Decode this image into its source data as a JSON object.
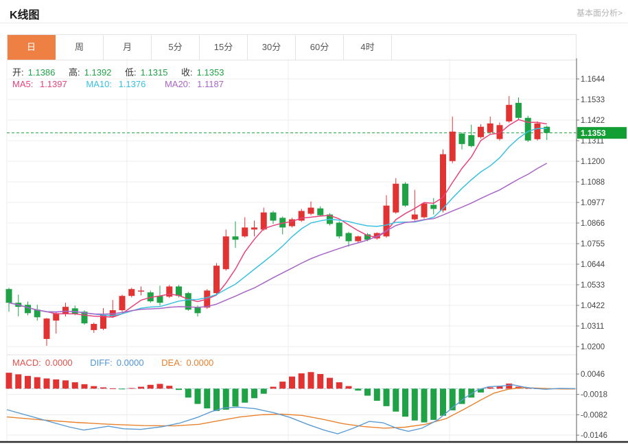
{
  "header": {
    "title": "K线图",
    "link": "基本面分析>"
  },
  "tabs": {
    "items": [
      "日",
      "周",
      "月",
      "5分",
      "15分",
      "30分",
      "60分",
      "4时"
    ],
    "active_index": 0
  },
  "indicators": {
    "open_label": "开:",
    "open": "1.1386",
    "high_label": "高:",
    "high": "1.1392",
    "low_label": "低:",
    "low": "1.1315",
    "close_label": "收:",
    "close": "1.1353",
    "ma5_label": "MA5:",
    "ma5": "1.1397",
    "ma10_label": "MA10:",
    "ma10": "1.1376",
    "ma20_label": "MA20:",
    "ma20": "1.1187"
  },
  "macd_header": {
    "macd_label": "MACD:",
    "macd": "0.0000",
    "diff_label": "DIFF:",
    "diff": "0.0000",
    "dea_label": "DEA:",
    "dea": "0.0000"
  },
  "colors": {
    "up": "#e23333",
    "down": "#1fa146",
    "ma5": "#e8427c",
    "ma10": "#38c0e0",
    "ma20": "#a964c7",
    "diff": "#5b9bd5",
    "dea": "#e8822e",
    "price_line": "#1aa337",
    "badge_bg": "#149f35",
    "badge_text": "#ffffff",
    "grid": "#ececec",
    "axis": "#777777",
    "tick_text": "#444444",
    "tab_accent": "#ee8044",
    "bottom_bar": "#2b2b2b",
    "macd_zero": "#9fc3e8"
  },
  "chart_data": {
    "type": "candlestick+macd",
    "title": "K线图 (daily candles with MA5/MA10/MA20 and MACD)",
    "legend_position": "top-left",
    "grid": true,
    "price_axis_ticks": [
      "1.1644",
      "1.1533",
      "1.1422",
      "1.1311",
      "1.1200",
      "1.1088",
      "1.0977",
      "1.0866",
      "1.0755",
      "1.0644",
      "1.0533",
      "1.0422",
      "1.0311",
      "1.0200"
    ],
    "price_axis_range": [
      1.02,
      1.1644
    ],
    "current_price": "1.1353",
    "ma_periods": [
      5,
      10,
      20
    ],
    "candles_ohlc": [
      [
        1.0511,
        1.0518,
        1.0389,
        1.0437
      ],
      [
        1.0437,
        1.0481,
        1.0364,
        1.0415
      ],
      [
        1.0426,
        1.0444,
        1.037,
        1.0381
      ],
      [
        1.04,
        1.0426,
        1.0341,
        1.0359
      ],
      [
        1.0242,
        1.0355,
        1.0205,
        1.0352
      ],
      [
        1.0341,
        1.0389,
        1.0271,
        1.0381
      ],
      [
        1.0378,
        1.0437,
        1.0363,
        1.0415
      ],
      [
        1.0407,
        1.0422,
        1.037,
        1.0378
      ],
      [
        1.0389,
        1.0396,
        1.0319,
        1.0326
      ],
      [
        1.029,
        1.033,
        1.0275,
        1.0323
      ],
      [
        1.0297,
        1.0408,
        1.029,
        1.0371
      ],
      [
        1.0363,
        1.0452,
        1.0356,
        1.0397
      ],
      [
        1.0397,
        1.0481,
        1.0389,
        1.0474
      ],
      [
        1.0474,
        1.0518,
        1.0466,
        1.0511
      ],
      [
        1.05,
        1.0525,
        1.0477,
        1.0503
      ],
      [
        1.0493,
        1.0503,
        1.0437,
        1.0445
      ],
      [
        1.0474,
        1.0529,
        1.0422,
        1.0437
      ],
      [
        1.047,
        1.0533,
        1.0463,
        1.0525
      ],
      [
        1.0525,
        1.0533,
        1.0466,
        1.0474
      ],
      [
        1.0489,
        1.0496,
        1.0393,
        1.04
      ],
      [
        1.0415,
        1.0422,
        1.0363,
        1.0381
      ],
      [
        1.0411,
        1.0511,
        1.0404,
        1.0503
      ],
      [
        1.0489,
        1.0651,
        1.048,
        1.0637
      ],
      [
        1.0618,
        1.0832,
        1.061,
        1.0795
      ],
      [
        1.0795,
        1.0876,
        1.0733,
        1.0777
      ],
      [
        1.0795,
        1.0898,
        1.0788,
        1.0843
      ],
      [
        1.0832,
        1.088,
        1.0795,
        1.0843
      ],
      [
        1.0832,
        1.095,
        1.0825,
        1.0924
      ],
      [
        1.0924,
        1.0932,
        1.0862,
        1.088
      ],
      [
        1.0895,
        1.0902,
        1.0806,
        1.0843
      ],
      [
        1.085,
        1.0895,
        1.0843,
        1.0887
      ],
      [
        1.088,
        1.0943,
        1.0873,
        1.0932
      ],
      [
        1.0917,
        1.0983,
        1.0909,
        1.095
      ],
      [
        1.0946,
        1.0957,
        1.0902,
        1.0909
      ],
      [
        1.0913,
        1.092,
        1.0854,
        1.0862
      ],
      [
        1.0869,
        1.0876,
        1.0784,
        1.0795
      ],
      [
        1.0813,
        1.082,
        1.074,
        1.0769
      ],
      [
        1.0769,
        1.0799,
        1.0762,
        1.0795
      ],
      [
        1.0806,
        1.0813,
        1.0769,
        1.0777
      ],
      [
        1.0784,
        1.0817,
        1.0777,
        1.0813
      ],
      [
        1.0795,
        1.1017,
        1.0788,
        1.0961
      ],
      [
        1.0924,
        1.1109,
        1.0917,
        1.1079
      ],
      [
        1.1079,
        1.1087,
        1.0954,
        1.0961
      ],
      [
        1.0887,
        1.1046,
        1.088,
        1.0913
      ],
      [
        1.0898,
        1.098,
        1.0891,
        1.0972
      ],
      [
        1.0965,
        1.1002,
        1.0913,
        1.0943
      ],
      [
        1.0935,
        1.1264,
        1.0924,
        1.1238
      ],
      [
        1.1201,
        1.1441,
        1.119,
        1.136
      ],
      [
        1.1349,
        1.1356,
        1.1264,
        1.1293
      ],
      [
        1.1341,
        1.1397,
        1.1275,
        1.1282
      ],
      [
        1.133,
        1.14,
        1.1323,
        1.1386
      ],
      [
        1.1356,
        1.1441,
        1.1349,
        1.1404
      ],
      [
        1.132,
        1.141,
        1.1312,
        1.1395
      ],
      [
        1.1415,
        1.1552,
        1.1408,
        1.1504
      ],
      [
        1.1515,
        1.1544,
        1.1422,
        1.1434
      ],
      [
        1.1434,
        1.1445,
        1.1304,
        1.1312
      ],
      [
        1.1319,
        1.1415,
        1.1312,
        1.1404
      ],
      [
        1.1386,
        1.1392,
        1.1315,
        1.1353
      ]
    ],
    "macd_axis_ticks": [
      "0.0046",
      "-0.0018",
      "-0.0082",
      "-0.0146"
    ],
    "macd_axis_range": [
      -0.0146,
      0.0046
    ],
    "macd_hist": [
      0.005,
      0.0045,
      0.004,
      0.0036,
      0.0032,
      0.0029,
      0.0026,
      0.002,
      0.0014,
      0.0008,
      0.0004,
      0.0001,
      -0.0001,
      0.0002,
      0.0006,
      0.0012,
      0.0015,
      0.0009,
      -0.0004,
      -0.0028,
      -0.0048,
      -0.0062,
      -0.007,
      -0.0066,
      -0.0056,
      -0.0044,
      -0.003,
      -0.0016,
      0.0006,
      0.0022,
      0.0038,
      0.0048,
      0.0052,
      0.0046,
      0.0034,
      0.002,
      0.0008,
      -0.0006,
      -0.0022,
      -0.0038,
      -0.0055,
      -0.0072,
      -0.0088,
      -0.01,
      -0.0106,
      -0.0098,
      -0.0085,
      -0.0068,
      -0.0048,
      -0.0028,
      -0.0012,
      0.0004,
      0.0008,
      0.0016,
      0.0006,
      0.0002,
      0.0001,
      0.0
    ],
    "diff_line": [
      [
        10,
        -0.0066
      ],
      [
        40,
        -0.0084
      ],
      [
        70,
        -0.0102
      ],
      [
        100,
        -0.012
      ],
      [
        122,
        -0.013
      ],
      [
        140,
        -0.0124
      ],
      [
        158,
        -0.0118
      ],
      [
        180,
        -0.0126
      ],
      [
        205,
        -0.0128
      ],
      [
        235,
        -0.012
      ],
      [
        262,
        -0.0108
      ],
      [
        288,
        -0.009
      ],
      [
        308,
        -0.0072
      ],
      [
        328,
        -0.006
      ],
      [
        348,
        -0.0058
      ],
      [
        372,
        -0.0063
      ],
      [
        398,
        -0.0075
      ],
      [
        422,
        -0.009
      ],
      [
        448,
        -0.0112
      ],
      [
        472,
        -0.013
      ],
      [
        492,
        -0.0142
      ],
      [
        515,
        -0.0124
      ],
      [
        538,
        -0.0103
      ],
      [
        558,
        -0.0107
      ],
      [
        580,
        -0.0126
      ],
      [
        595,
        -0.0134
      ],
      [
        615,
        -0.0124
      ],
      [
        638,
        -0.0098
      ],
      [
        658,
        -0.0062
      ],
      [
        678,
        -0.0028
      ],
      [
        696,
        -0.0004
      ],
      [
        712,
        0.0006
      ],
      [
        730,
        0.0008
      ],
      [
        748,
        0.0012
      ],
      [
        763,
        0.0005
      ],
      [
        778,
        0.0001
      ],
      [
        795,
        -0.0002
      ],
      [
        815,
        0.0001
      ],
      [
        838,
        0.0
      ]
    ],
    "dea_line": [
      [
        10,
        -0.0089
      ],
      [
        60,
        -0.0098
      ],
      [
        110,
        -0.0106
      ],
      [
        160,
        -0.0112
      ],
      [
        210,
        -0.0116
      ],
      [
        255,
        -0.0117
      ],
      [
        290,
        -0.0112
      ],
      [
        320,
        -0.01
      ],
      [
        350,
        -0.0089
      ],
      [
        380,
        -0.0082
      ],
      [
        410,
        -0.008
      ],
      [
        440,
        -0.0084
      ],
      [
        470,
        -0.0096
      ],
      [
        500,
        -0.011
      ],
      [
        530,
        -0.0119
      ],
      [
        560,
        -0.0124
      ],
      [
        590,
        -0.0121
      ],
      [
        620,
        -0.0112
      ],
      [
        650,
        -0.0094
      ],
      [
        675,
        -0.0066
      ],
      [
        700,
        -0.0036
      ],
      [
        720,
        -0.0014
      ],
      [
        740,
        -0.0002
      ],
      [
        760,
        0.0003
      ],
      [
        780,
        0.0002
      ],
      [
        800,
        0.0
      ],
      [
        820,
        -0.0001
      ],
      [
        838,
        -0.0001
      ]
    ]
  }
}
